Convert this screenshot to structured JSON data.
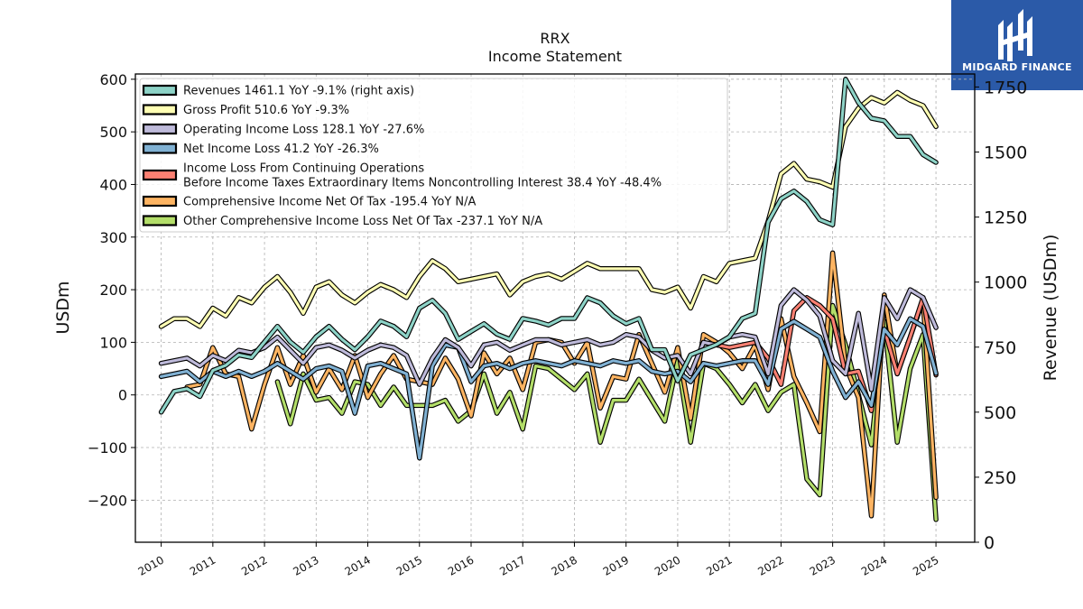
{
  "brand": {
    "name": "MIDGARD FINANCE",
    "logo_icon": "midgard-logo-icon",
    "background_color": "#2b5aa8"
  },
  "chart_data": {
    "type": "line",
    "title": "RRX",
    "subtitle": "Income Statement",
    "ylabel_left": "USDm",
    "ylabel_right": "Revenue (USDm)",
    "xlim": [
      2009.5,
      2025.75
    ],
    "ylim_left": [
      -280,
      610
    ],
    "ylim_right": [
      0,
      1800
    ],
    "x_ticks": [
      2010,
      2011,
      2012,
      2013,
      2014,
      2015,
      2016,
      2017,
      2018,
      2019,
      2020,
      2021,
      2022,
      2023,
      2024,
      2025
    ],
    "x_tick_labels": [
      "2010",
      "2011",
      "2012",
      "2013",
      "2014",
      "2015",
      "2016",
      "2017",
      "2018",
      "2019",
      "2020",
      "2021",
      "2022",
      "2023",
      "2024",
      "2025"
    ],
    "y_ticks_left": [
      -200,
      -100,
      0,
      100,
      200,
      300,
      400,
      500,
      600
    ],
    "y_tick_labels_left": [
      "−200",
      "−100",
      "0",
      "100",
      "200",
      "300",
      "400",
      "500",
      "600"
    ],
    "y_ticks_right": [
      0,
      250,
      500,
      750,
      1000,
      1250,
      1500,
      1750
    ],
    "y_tick_labels_right": [
      "0",
      "250",
      "500",
      "750",
      "1000",
      "1250",
      "1500",
      "1750"
    ],
    "grid": true,
    "legend_position": "top-left",
    "series": [
      {
        "name": "Revenues  1461.1 YoY -9.1% (right axis)",
        "axis": "right",
        "color": "#8dd3c7",
        "x": [
          2010.0,
          2010.25,
          2010.5,
          2010.75,
          2011.0,
          2011.25,
          2011.5,
          2011.75,
          2012.0,
          2012.25,
          2012.5,
          2012.75,
          2013.0,
          2013.25,
          2013.5,
          2013.75,
          2014.0,
          2014.25,
          2014.5,
          2014.75,
          2015.0,
          2015.25,
          2015.5,
          2015.75,
          2016.0,
          2016.25,
          2016.5,
          2016.75,
          2017.0,
          2017.25,
          2017.5,
          2017.75,
          2018.0,
          2018.25,
          2018.5,
          2018.75,
          2019.0,
          2019.25,
          2019.5,
          2019.75,
          2020.0,
          2020.25,
          2020.5,
          2020.75,
          2021.0,
          2021.25,
          2021.5,
          2021.75,
          2022.0,
          2022.25,
          2022.5,
          2022.75,
          2023.0,
          2023.25,
          2023.5,
          2023.75,
          2024.0,
          2024.25,
          2024.5,
          2024.75,
          2025.0
        ],
        "values": [
          500,
          580,
          590,
          560,
          660,
          680,
          720,
          710,
          770,
          830,
          770,
          730,
          790,
          830,
          780,
          740,
          790,
          850,
          830,
          790,
          900,
          930,
          880,
          780,
          810,
          840,
          800,
          780,
          860,
          850,
          835,
          860,
          860,
          940,
          920,
          870,
          840,
          860,
          740,
          740,
          620,
          720,
          740,
          760,
          790,
          860,
          880,
          1230,
          1320,
          1350,
          1310,
          1240,
          1220,
          1780,
          1690,
          1630,
          1620,
          1560,
          1560,
          1490,
          1460
        ]
      },
      {
        "name": "Gross Profit  510.6 YoY -9.3%",
        "axis": "left",
        "color": "#ffffb3",
        "x": [
          2010.0,
          2010.25,
          2010.5,
          2010.75,
          2011.0,
          2011.25,
          2011.5,
          2011.75,
          2012.0,
          2012.25,
          2012.5,
          2012.75,
          2013.0,
          2013.25,
          2013.5,
          2013.75,
          2014.0,
          2014.25,
          2014.5,
          2014.75,
          2015.0,
          2015.25,
          2015.5,
          2015.75,
          2016.0,
          2016.25,
          2016.5,
          2016.75,
          2017.0,
          2017.25,
          2017.5,
          2017.75,
          2018.0,
          2018.25,
          2018.5,
          2018.75,
          2019.0,
          2019.25,
          2019.5,
          2019.75,
          2020.0,
          2020.25,
          2020.5,
          2020.75,
          2021.0,
          2021.25,
          2021.5,
          2021.75,
          2022.0,
          2022.25,
          2022.5,
          2022.75,
          2023.0,
          2023.25,
          2023.5,
          2023.75,
          2024.0,
          2024.25,
          2024.5,
          2024.75,
          2025.0
        ],
        "values": [
          130,
          145,
          145,
          130,
          165,
          150,
          185,
          175,
          205,
          225,
          195,
          155,
          205,
          215,
          190,
          175,
          195,
          210,
          200,
          185,
          225,
          255,
          240,
          215,
          220,
          225,
          230,
          190,
          215,
          225,
          230,
          220,
          235,
          250,
          240,
          240,
          240,
          240,
          200,
          195,
          205,
          165,
          225,
          215,
          250,
          255,
          260,
          330,
          420,
          440,
          410,
          405,
          395,
          510,
          545,
          565,
          555,
          575,
          560,
          550,
          510
        ]
      },
      {
        "name": "Operating Income Loss  128.1 YoY -27.6%",
        "axis": "left",
        "color": "#bebada",
        "x": [
          2010.0,
          2010.25,
          2010.5,
          2010.75,
          2011.0,
          2011.25,
          2011.5,
          2011.75,
          2012.0,
          2012.25,
          2012.5,
          2012.75,
          2013.0,
          2013.25,
          2013.5,
          2013.75,
          2014.0,
          2014.25,
          2014.5,
          2014.75,
          2015.0,
          2015.25,
          2015.5,
          2015.75,
          2016.0,
          2016.25,
          2016.5,
          2016.75,
          2017.0,
          2017.25,
          2017.5,
          2017.75,
          2018.0,
          2018.25,
          2018.5,
          2018.75,
          2019.0,
          2019.25,
          2019.5,
          2019.75,
          2020.0,
          2020.25,
          2020.5,
          2020.75,
          2021.0,
          2021.25,
          2021.5,
          2021.75,
          2022.0,
          2022.25,
          2022.5,
          2022.75,
          2023.0,
          2023.25,
          2023.5,
          2023.75,
          2024.0,
          2024.25,
          2024.5,
          2024.75,
          2025.0
        ],
        "values": [
          60,
          65,
          70,
          55,
          75,
          65,
          85,
          80,
          90,
          110,
          85,
          60,
          90,
          95,
          85,
          70,
          85,
          95,
          90,
          75,
          20,
          70,
          105,
          90,
          55,
          95,
          100,
          85,
          95,
          105,
          105,
          95,
          100,
          105,
          95,
          100,
          115,
          110,
          85,
          70,
          75,
          40,
          100,
          95,
          110,
          115,
          110,
          40,
          170,
          200,
          180,
          150,
          65,
          40,
          155,
          10,
          185,
          145,
          200,
          185,
          128
        ]
      },
      {
        "name": "Net Income Loss  41.2 YoY -26.3%",
        "axis": "left",
        "color": "#80b1d3",
        "x": [
          2010.0,
          2010.25,
          2010.5,
          2010.75,
          2011.0,
          2011.25,
          2011.5,
          2011.75,
          2012.0,
          2012.25,
          2012.5,
          2012.75,
          2013.0,
          2013.25,
          2013.5,
          2013.75,
          2014.0,
          2014.25,
          2014.5,
          2014.75,
          2015.0,
          2015.25,
          2015.5,
          2015.75,
          2016.0,
          2016.25,
          2016.5,
          2016.75,
          2017.0,
          2017.25,
          2017.5,
          2017.75,
          2018.0,
          2018.25,
          2018.5,
          2018.75,
          2019.0,
          2019.25,
          2019.5,
          2019.75,
          2020.0,
          2020.25,
          2020.5,
          2020.75,
          2021.0,
          2021.25,
          2021.5,
          2021.75,
          2022.0,
          2022.25,
          2022.5,
          2022.75,
          2023.0,
          2023.25,
          2023.5,
          2023.75,
          2024.0,
          2024.25,
          2024.5,
          2024.75,
          2025.0
        ],
        "values": [
          35,
          40,
          45,
          25,
          45,
          35,
          45,
          35,
          45,
          60,
          45,
          30,
          50,
          55,
          45,
          -35,
          55,
          60,
          50,
          40,
          -120,
          55,
          95,
          90,
          25,
          55,
          60,
          50,
          60,
          65,
          60,
          55,
          65,
          60,
          55,
          65,
          60,
          65,
          45,
          40,
          45,
          25,
          60,
          55,
          60,
          65,
          65,
          20,
          125,
          140,
          125,
          110,
          45,
          -5,
          25,
          -20,
          125,
          95,
          145,
          130,
          41
        ]
      },
      {
        "name": "Income Loss From Continuing Operations Before Income Taxes Extraordinary Items Noncontrolling Interest  38.4 YoY -48.4%",
        "legend_lines": [
          "Income Loss From Continuing Operations",
          "Before Income Taxes Extraordinary Items Noncontrolling Interest  38.4 YoY -48.4%"
        ],
        "axis": "left",
        "color": "#fb8072",
        "x": [
          2020.75,
          2021.0,
          2021.25,
          2021.5,
          2021.75,
          2022.0,
          2022.25,
          2022.5,
          2022.75,
          2023.0,
          2023.25,
          2023.5,
          2023.75,
          2024.0,
          2024.25,
          2024.5,
          2024.75,
          2025.0
        ],
        "values": [
          95,
          90,
          95,
          100,
          70,
          20,
          160,
          185,
          170,
          145,
          40,
          45,
          -30,
          125,
          40,
          110,
          185,
          38
        ]
      },
      {
        "name": "Comprehensive Income Net Of Tax  -195.4 YoY N/A",
        "axis": "left",
        "color": "#fdb462",
        "x": [
          2010.5,
          2010.75,
          2011.0,
          2011.25,
          2011.5,
          2011.75,
          2012.0,
          2012.25,
          2012.5,
          2012.75,
          2013.0,
          2013.25,
          2013.5,
          2013.75,
          2014.0,
          2014.25,
          2014.5,
          2014.75,
          2015.0,
          2015.25,
          2015.5,
          2015.75,
          2016.0,
          2016.25,
          2016.5,
          2016.75,
          2017.0,
          2017.25,
          2017.5,
          2017.75,
          2018.0,
          2018.25,
          2018.5,
          2018.75,
          2019.0,
          2019.25,
          2019.5,
          2019.75,
          2020.0,
          2020.25,
          2020.5,
          2020.75,
          2021.0,
          2021.25,
          2021.5,
          2021.75,
          2022.0,
          2022.25,
          2022.5,
          2022.75,
          2023.0,
          2023.25,
          2023.5,
          2023.75,
          2024.0,
          2024.25,
          2024.5,
          2024.75,
          2025.0
        ],
        "values": [
          15,
          20,
          90,
          40,
          35,
          -65,
          20,
          90,
          20,
          75,
          5,
          50,
          10,
          75,
          -5,
          40,
          75,
          30,
          25,
          20,
          70,
          30,
          -40,
          80,
          40,
          70,
          10,
          100,
          105,
          100,
          60,
          100,
          -25,
          35,
          30,
          115,
          60,
          5,
          90,
          -45,
          115,
          100,
          80,
          50,
          95,
          10,
          145,
          35,
          -15,
          -70,
          270,
          55,
          -5,
          -230,
          190,
          40,
          110,
          180,
          -195
        ]
      },
      {
        "name": "Other Comprehensive Income Loss Net Of Tax  -237.1 YoY N/A",
        "axis": "left",
        "color": "#b3de69",
        "x": [
          2012.25,
          2012.5,
          2012.75,
          2013.0,
          2013.25,
          2013.5,
          2013.75,
          2014.0,
          2014.25,
          2014.5,
          2014.75,
          2015.0,
          2015.25,
          2015.5,
          2015.75,
          2016.0,
          2016.25,
          2016.5,
          2016.75,
          2017.0,
          2017.25,
          2017.5,
          2017.75,
          2018.0,
          2018.25,
          2018.5,
          2018.75,
          2019.0,
          2019.25,
          2019.5,
          2019.75,
          2020.0,
          2020.25,
          2020.5,
          2020.75,
          2021.0,
          2021.25,
          2021.5,
          2021.75,
          2022.0,
          2022.25,
          2022.5,
          2022.75,
          2023.0,
          2023.25,
          2023.5,
          2023.75,
          2024.0,
          2024.25,
          2024.5,
          2024.75,
          2025.0
        ],
        "values": [
          25,
          -55,
          40,
          -10,
          -5,
          -35,
          25,
          20,
          -20,
          15,
          -20,
          -20,
          -20,
          -10,
          -50,
          -30,
          40,
          -35,
          5,
          -65,
          55,
          50,
          30,
          10,
          40,
          -90,
          -10,
          -10,
          30,
          -10,
          -50,
          65,
          -90,
          60,
          50,
          20,
          -15,
          20,
          -30,
          5,
          20,
          -160,
          -190,
          170,
          95,
          0,
          -95,
          140,
          -90,
          50,
          115,
          -237
        ]
      }
    ]
  }
}
